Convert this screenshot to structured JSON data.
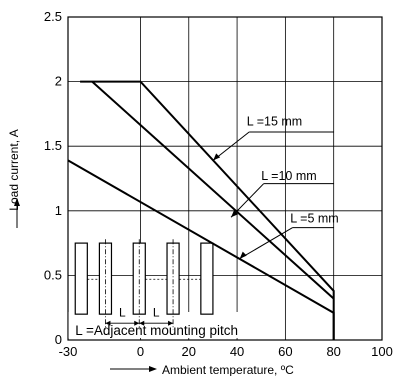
{
  "chart_data": {
    "type": "line",
    "xlabel": "Ambient temperature, ºC",
    "ylabel": "Load current, A",
    "xlim": [
      -30,
      100
    ],
    "ylim": [
      0,
      2.5
    ],
    "x_ticks": [
      -30,
      0,
      20,
      40,
      60,
      80,
      100
    ],
    "x_tick_labels": [
      "-30",
      "0",
      "20",
      "40",
      "60",
      "80",
      "100"
    ],
    "y_ticks": [
      0,
      0.5,
      1,
      1.5,
      2,
      2.5
    ],
    "y_tick_labels": [
      "0",
      "0.5",
      "1",
      "1.5",
      "2",
      "2.5"
    ],
    "grid": true,
    "series": [
      {
        "name": "L =15 mm",
        "points": [
          [
            -25,
            2.0
          ],
          [
            0,
            2.0
          ],
          [
            80,
            0.38
          ],
          [
            80,
            0
          ]
        ]
      },
      {
        "name": "L =10 mm",
        "points": [
          [
            -20,
            2.0
          ],
          [
            80,
            0.32
          ]
        ]
      },
      {
        "name": "L =5 mm",
        "points": [
          [
            -30,
            1.39
          ],
          [
            80,
            0.21
          ],
          [
            80,
            0
          ]
        ]
      }
    ],
    "annotations": {
      "inset_label": "L =Adjacent mounting pitch",
      "pitch_symbol": "L"
    }
  }
}
